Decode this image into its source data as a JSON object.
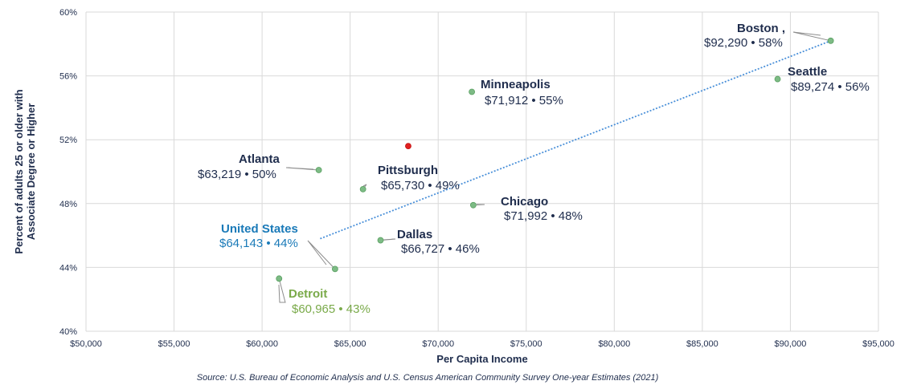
{
  "chart_data": {
    "type": "scatter",
    "xlabel": "Per Capita Income",
    "ylabel_lines": [
      "Percent of adults 25 or older with",
      "Associate Degree or Higher"
    ],
    "xlim": [
      50000,
      95000
    ],
    "ylim": [
      40,
      60
    ],
    "x_ticks": [
      50000,
      55000,
      60000,
      65000,
      70000,
      75000,
      80000,
      85000,
      90000,
      95000
    ],
    "x_tick_labels": [
      "$50,000",
      "$55,000",
      "$60,000",
      "$65,000",
      "$70,000",
      "$75,000",
      "$80,000",
      "$85,000",
      "$90,000",
      "$95,000"
    ],
    "y_ticks": [
      40,
      44,
      48,
      52,
      56,
      60
    ],
    "y_tick_labels": [
      "40%",
      "44%",
      "48%",
      "52%",
      "56%",
      "60%"
    ],
    "grid": true,
    "trendline": {
      "style": "dotted",
      "color": "#4a90d9",
      "from": [
        63300,
        45.8
      ],
      "to": [
        92300,
        58.2
      ]
    },
    "points": [
      {
        "name": "Boston",
        "name_suffix": " ,",
        "value_text": "$92,290 • 58%",
        "x": 92290,
        "y": 58.2,
        "color": "#7dbb85",
        "label_color": "#1f2d4d"
      },
      {
        "name": "Seattle",
        "value_text": "$89,274  •  56%",
        "x": 89274,
        "y": 55.8,
        "color": "#7dbb85",
        "label_color": "#1f2d4d"
      },
      {
        "name": "Minneapolis",
        "value_text": "$71,912  •  55%",
        "x": 71912,
        "y": 55.0,
        "color": "#7dbb85",
        "label_color": "#1f2d4d"
      },
      {
        "name": "Atlanta",
        "value_text": "$63,219 • 50%",
        "x": 63219,
        "y": 50.1,
        "color": "#7dbb85",
        "label_color": "#1f2d4d"
      },
      {
        "name": "Pittsburgh",
        "value_text": "$65,730 • 49%",
        "x": 65730,
        "y": 48.9,
        "color": "#7dbb85",
        "label_color": "#1f2d4d"
      },
      {
        "name": "Chicago",
        "value_text": "$71,992  • 48%",
        "x": 71992,
        "y": 47.9,
        "color": "#7dbb85",
        "label_color": "#1f2d4d"
      },
      {
        "name": "Dallas",
        "value_text": "$66,727 • 46%",
        "x": 66727,
        "y": 45.7,
        "color": "#7dbb85",
        "label_color": "#1f2d4d"
      },
      {
        "name": "United States",
        "value_text": "$64,143 • 44%",
        "x": 64143,
        "y": 43.9,
        "color": "#7dbb85",
        "label_color": "#1a7ab8"
      },
      {
        "name": "Detroit",
        "value_text": "$60,965 • 43%",
        "x": 60965,
        "y": 43.3,
        "color": "#7dbb85",
        "label_color": "#7aaa4a"
      },
      {
        "name": "",
        "value_text": "",
        "x": 68300,
        "y": 51.6,
        "color": "#e02020",
        "label_color": "#1f2d4d"
      }
    ]
  },
  "source": "Source: U.S. Bureau of Economic Analysis and U.S. Census American Community Survey One-year Estimates (2021)"
}
